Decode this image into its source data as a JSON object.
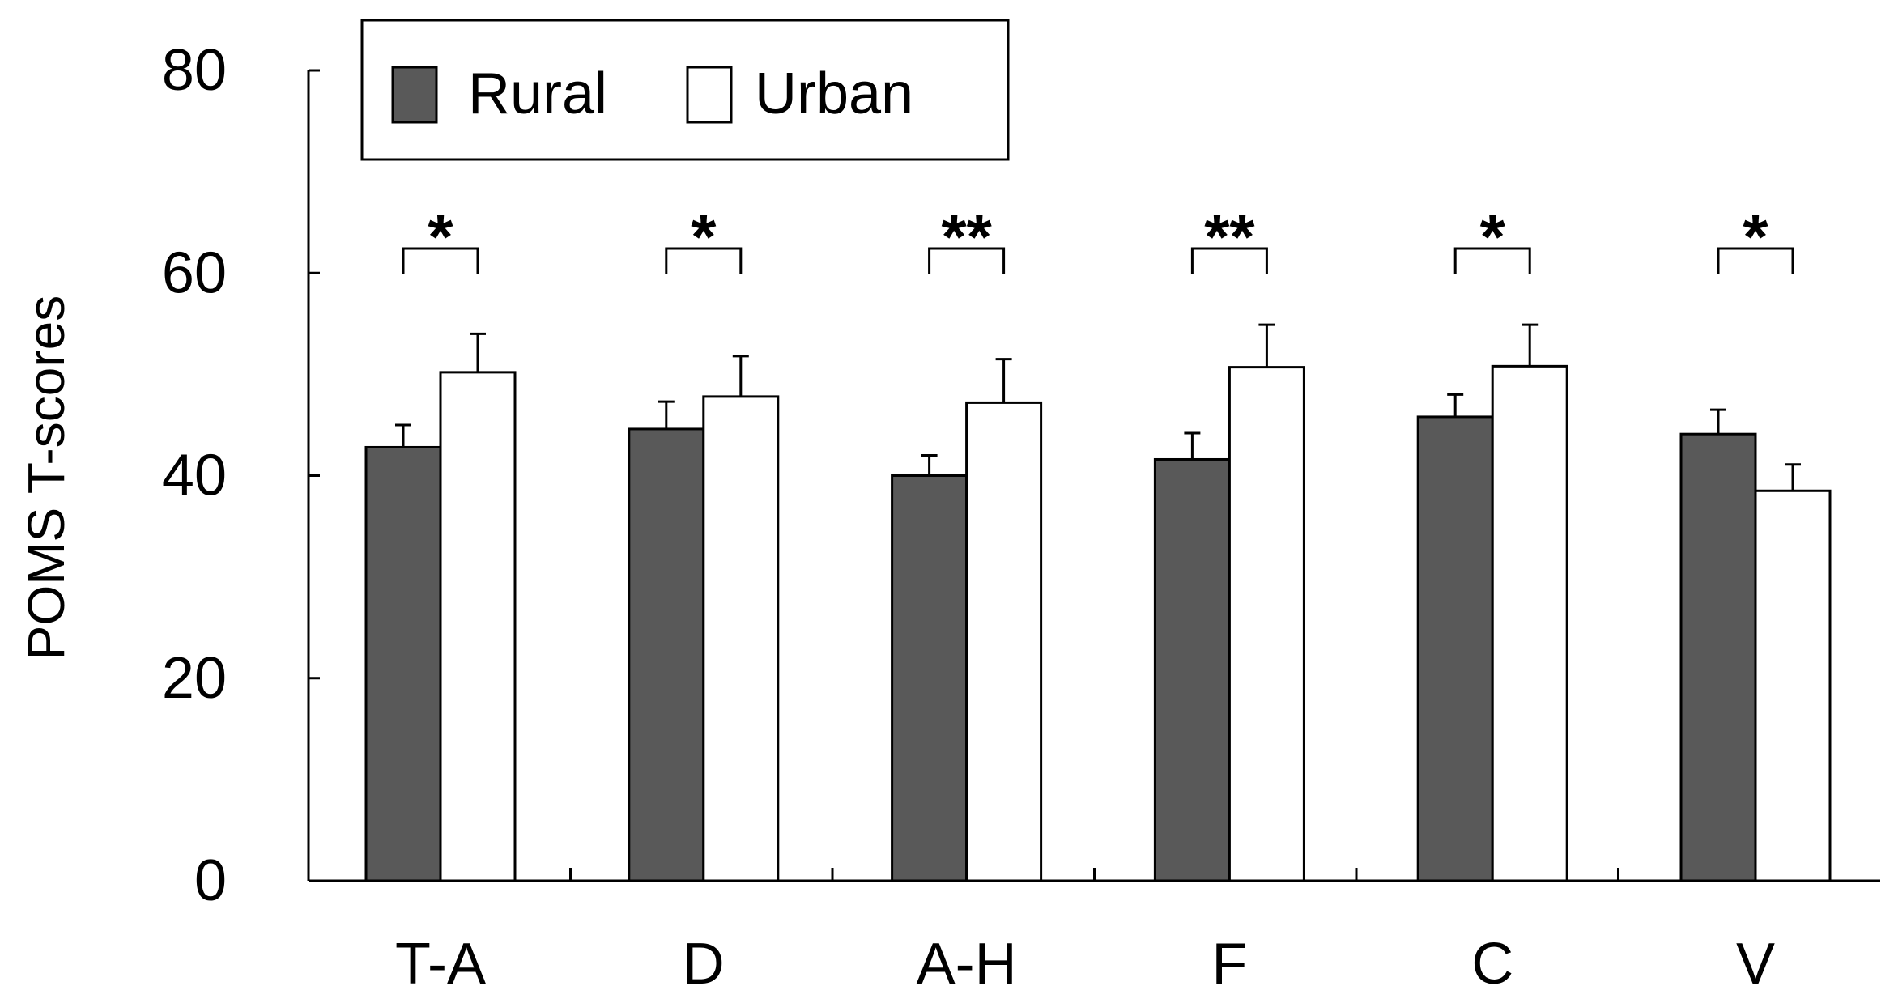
{
  "chart_data": {
    "type": "bar",
    "title": "",
    "xlabel": "",
    "ylabel": "POMS T-scores",
    "ylim": [
      0,
      80
    ],
    "yticks": [
      0,
      20,
      40,
      60,
      80
    ],
    "grid": false,
    "legend_position": "top-left",
    "categories": [
      "T-A",
      "D",
      "A-H",
      "F",
      "C",
      "V"
    ],
    "series": [
      {
        "name": "Rural",
        "color": "#595959",
        "values": [
          42.8,
          44.6,
          40.0,
          41.6,
          45.8,
          44.1
        ],
        "errors": [
          2.2,
          2.7,
          2.0,
          2.6,
          2.2,
          2.4
        ]
      },
      {
        "name": "Urban",
        "color": "#ffffff",
        "values": [
          50.2,
          47.8,
          47.2,
          50.7,
          50.8,
          38.5
        ],
        "errors": [
          3.8,
          4.0,
          4.3,
          4.2,
          4.1,
          2.6
        ]
      }
    ],
    "significance": [
      "*",
      "*",
      "**",
      "**",
      "*",
      "*"
    ]
  }
}
